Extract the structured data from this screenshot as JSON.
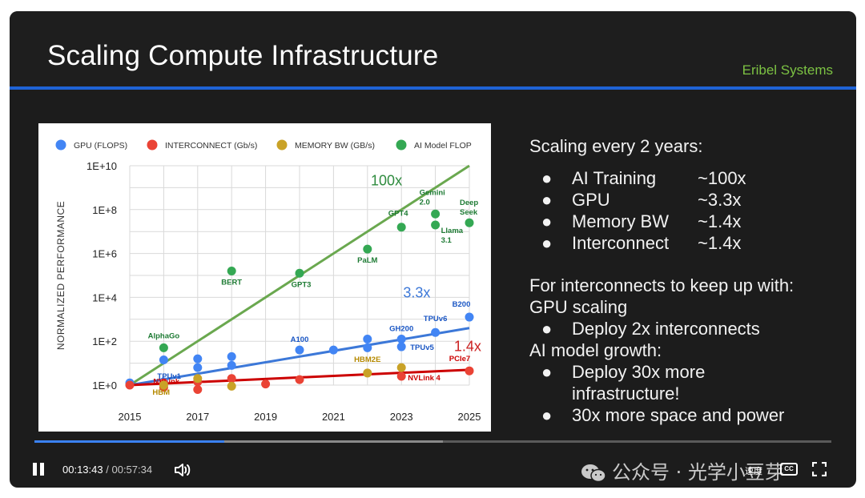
{
  "slide": {
    "title": "Scaling Compute Infrastructure",
    "brand": "Eribel Systems"
  },
  "right_panel": {
    "heading1": "Scaling every 2 years:",
    "bullets": [
      {
        "label": "AI Training",
        "value": "~100x"
      },
      {
        "label": "GPU",
        "value": "~3.3x"
      },
      {
        "label": "Memory BW",
        "value": "~1.4x"
      },
      {
        "label": "Interconnect",
        "value": "~1.4x"
      }
    ],
    "heading2a": "For interconnects to keep up with:",
    "heading2b": "GPU scaling",
    "bullet_gpu": "Deploy 2x interconnects",
    "heading3": "AI model growth:",
    "bullet_ai_1": "Deploy 30x more",
    "bullet_ai_2": "infrastructure!",
    "bullet_ai_3": "30x more space and power",
    "bullet_char": "●"
  },
  "player": {
    "current_time": "00:13:43",
    "separator": "/",
    "duration": "00:57:34",
    "progress": 0.238,
    "buffered": 0.513,
    "speed_label": "速度",
    "cc_label": "CC",
    "watermark": "公众号 · 光学小豆芽"
  },
  "colors": {
    "gpu": "#4285f4",
    "interconnect": "#ea4335",
    "memory": "#c9a227",
    "ai": "#34a853",
    "ai_line": "#6aa84f",
    "gpu_line": "#3c78d8",
    "ic_line": "#cc0000"
  },
  "chart_data": {
    "type": "scatter",
    "ylabel": "NORMALIZED PERFORMANCE",
    "xlim": [
      2015,
      2025
    ],
    "ylim_log10": [
      0,
      10
    ],
    "x_ticks": [
      "2015",
      "2017",
      "2019",
      "2021",
      "2023",
      "2025"
    ],
    "y_ticks": [
      "1E+0",
      "1E+2",
      "1E+4",
      "1E+6",
      "1E+8",
      "1E+10"
    ],
    "legend": [
      "GPU (FLOPS)",
      "INTERCONNECT (Gb/s)",
      "MEMORY BW (GB/s)",
      "AI Model FLOP"
    ],
    "trend_annotations": [
      "100x",
      "3.3x",
      "1.4x"
    ],
    "series": [
      {
        "name": "AI Model FLOP",
        "points": [
          {
            "x": 2016,
            "y_log10": 1.7,
            "label": "AlphaGo"
          },
          {
            "x": 2018,
            "y_log10": 5.2,
            "label": "BERT"
          },
          {
            "x": 2020,
            "y_log10": 5.1,
            "label": "GPT3"
          },
          {
            "x": 2022,
            "y_log10": 6.2,
            "label": "PaLM"
          },
          {
            "x": 2023,
            "y_log10": 7.2,
            "label": "GPT4"
          },
          {
            "x": 2024,
            "y_log10": 7.8,
            "label": "Gemini 2.0"
          },
          {
            "x": 2024,
            "y_log10": 7.3,
            "label": "Llama 3.1"
          },
          {
            "x": 2025,
            "y_log10": 7.4,
            "label": "Deep Seek"
          }
        ]
      },
      {
        "name": "GPU (FLOPS)",
        "points": [
          {
            "x": 2015,
            "y_log10": 0.1
          },
          {
            "x": 2016,
            "y_log10": 0.15,
            "label": "TPUv1"
          },
          {
            "x": 2016,
            "y_log10": 1.15
          },
          {
            "x": 2017,
            "y_log10": 0.8
          },
          {
            "x": 2017,
            "y_log10": 1.2
          },
          {
            "x": 2018,
            "y_log10": 0.9
          },
          {
            "x": 2018,
            "y_log10": 1.3
          },
          {
            "x": 2020,
            "y_log10": 1.6,
            "label": "A100"
          },
          {
            "x": 2021,
            "y_log10": 1.6
          },
          {
            "x": 2022,
            "y_log10": 1.7
          },
          {
            "x": 2022,
            "y_log10": 2.1
          },
          {
            "x": 2023,
            "y_log10": 2.1,
            "label": "GH200"
          },
          {
            "x": 2023,
            "y_log10": 1.75,
            "label": "TPUv5"
          },
          {
            "x": 2024,
            "y_log10": 2.4,
            "label": "TPUv6"
          },
          {
            "x": 2025,
            "y_log10": 3.1,
            "label": "B200"
          }
        ]
      },
      {
        "name": "INTERCONNECT (Gb/s)",
        "points": [
          {
            "x": 2015,
            "y_log10": 0.0
          },
          {
            "x": 2016,
            "y_log10": 0.1,
            "label": "NVLink"
          },
          {
            "x": 2016,
            "y_log10": -0.1
          },
          {
            "x": 2017,
            "y_log10": 0.15
          },
          {
            "x": 2017,
            "y_log10": -0.2
          },
          {
            "x": 2018,
            "y_log10": 0.3
          },
          {
            "x": 2019,
            "y_log10": 0.05
          },
          {
            "x": 2020,
            "y_log10": 0.25
          },
          {
            "x": 2023,
            "y_log10": 0.4,
            "label": "NVLink 4"
          },
          {
            "x": 2025,
            "y_log10": 0.65,
            "label": "PCIe7"
          }
        ]
      },
      {
        "name": "MEMORY BW (GB/s)",
        "points": [
          {
            "x": 2016,
            "y_log10": 0.0,
            "label": "HBM"
          },
          {
            "x": 2017,
            "y_log10": 0.3
          },
          {
            "x": 2018,
            "y_log10": -0.05
          },
          {
            "x": 2022,
            "y_log10": 0.55,
            "label": "HBM2E"
          },
          {
            "x": 2023,
            "y_log10": 0.8
          }
        ]
      }
    ],
    "trend_lines": [
      {
        "name": "AI Model FLOP",
        "from": [
          2015,
          0.0
        ],
        "to": [
          2025,
          10.0
        ]
      },
      {
        "name": "GPU (FLOPS)",
        "from": [
          2015,
          0.0
        ],
        "to": [
          2025,
          2.6
        ]
      },
      {
        "name": "INTERCONNECT (Gb/s)",
        "from": [
          2015,
          0.0
        ],
        "to": [
          2025,
          0.7
        ]
      }
    ]
  }
}
